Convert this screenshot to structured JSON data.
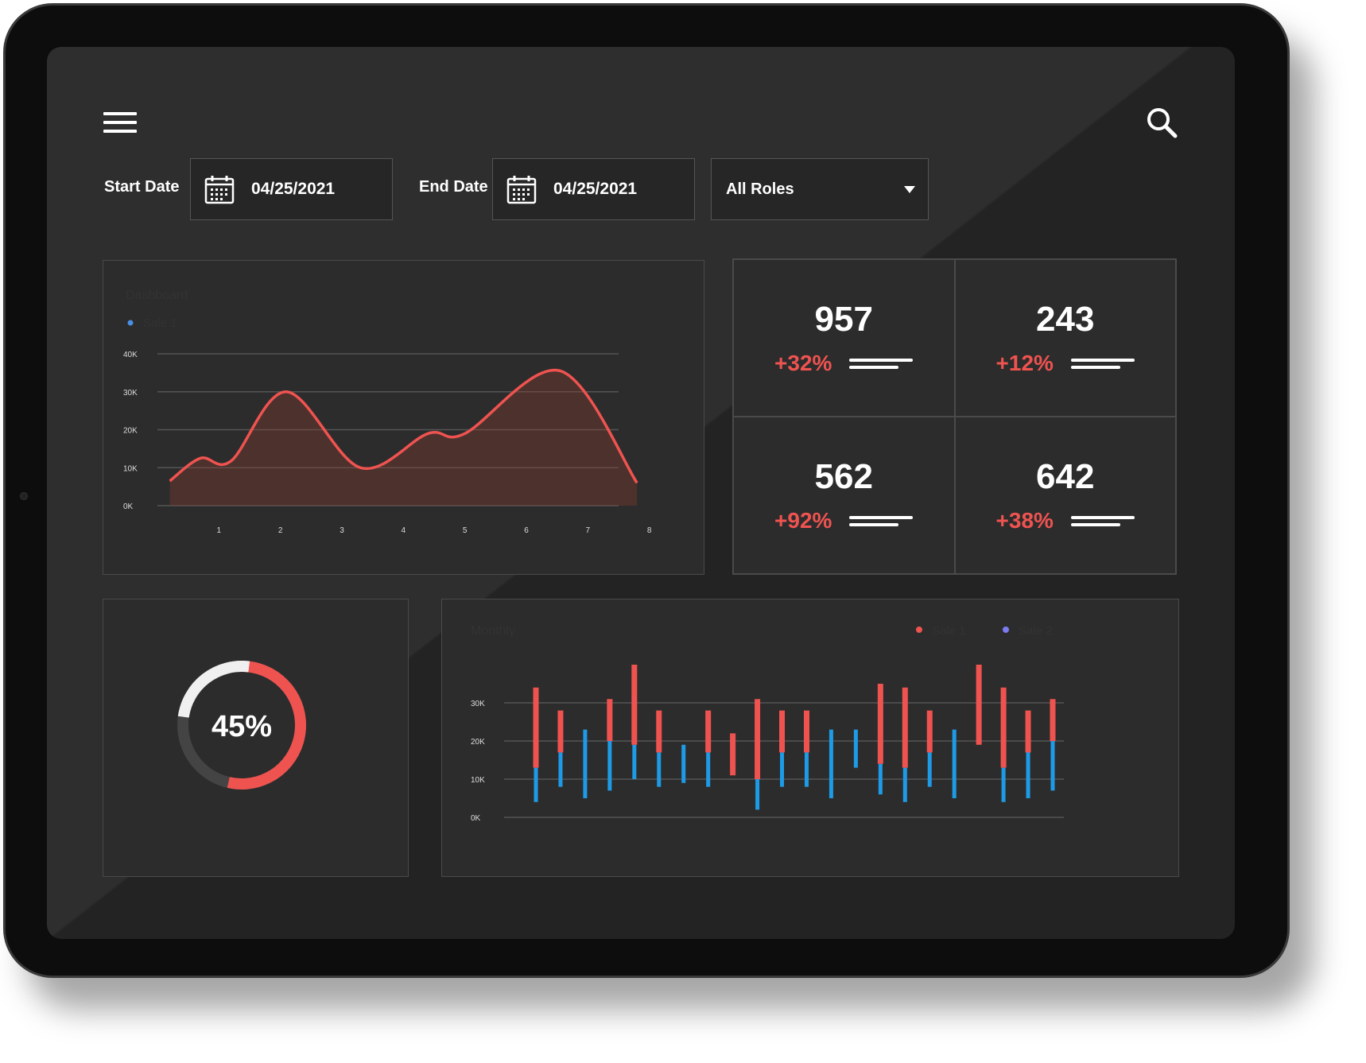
{
  "filters": {
    "start_label": "Start Date",
    "start_value": "04/25/2021",
    "end_label": "End Date",
    "end_value": "04/25/2021",
    "role_value": "All Roles"
  },
  "colors": {
    "accent_red": "#ef5350",
    "accent_blue": "#1e9be6",
    "legend_blue": "#4a8fe6",
    "legend_purple": "#7b7bf0"
  },
  "icons": {
    "menu": "hamburger-icon",
    "search": "search-icon",
    "calendar": "calendar-icon",
    "dropdown": "caret-down-icon"
  },
  "stats": [
    {
      "value": "957",
      "change": "+32%"
    },
    {
      "value": "243",
      "change": "+12%"
    },
    {
      "value": "562",
      "change": "+92%"
    },
    {
      "value": "642",
      "change": "+38%"
    }
  ],
  "gauge": {
    "label": "45%",
    "value": 0.45
  },
  "chart_data": [
    {
      "type": "area",
      "title": "Dashboard",
      "series": [
        {
          "name": "Sale 1",
          "values": [
            6500,
            12500,
            11800,
            30000,
            10000,
            19000,
            19000,
            35500,
            6000
          ]
        }
      ],
      "x": [
        0.2,
        0.7,
        1.2,
        2.1,
        3.3,
        4.4,
        5.0,
        6.55,
        7.8
      ],
      "x_ticks": [
        "1",
        "2",
        "3",
        "4",
        "5",
        "6",
        "7",
        "8"
      ],
      "y_ticks": [
        "40K",
        "30K",
        "20K",
        "10K",
        "0K"
      ],
      "ylim": [
        0,
        40000
      ],
      "grid": true,
      "legend": "top-left"
    },
    {
      "type": "bar",
      "title": "Monthly",
      "legend": "top-right",
      "y_ticks": [
        "30K",
        "20K",
        "10K",
        "0K"
      ],
      "ylim": [
        0,
        30000
      ],
      "grid": true,
      "series": [
        {
          "name": "Sale 1",
          "ranges": [
            [
              13000,
              34000
            ],
            [
              17000,
              28000
            ],
            null,
            [
              20000,
              31000
            ],
            [
              19000,
              40000
            ],
            [
              17000,
              28000
            ],
            null,
            [
              17000,
              28000
            ],
            [
              11000,
              22000
            ],
            [
              10000,
              31000
            ],
            [
              17000,
              28000
            ],
            [
              17000,
              28000
            ],
            null,
            null,
            [
              14000,
              35000
            ],
            [
              13000,
              34000
            ],
            [
              17000,
              28000
            ],
            null,
            [
              19000,
              40000
            ],
            [
              13000,
              34000
            ],
            [
              17000,
              28000
            ],
            [
              20000,
              31000
            ]
          ]
        },
        {
          "name": "Sale 2",
          "ranges": [
            [
              4000,
              13000
            ],
            [
              8000,
              17000
            ],
            [
              5000,
              23000
            ],
            [
              7000,
              20000
            ],
            [
              10000,
              19000
            ],
            [
              8000,
              17000
            ],
            [
              9000,
              19000
            ],
            [
              8000,
              17000
            ],
            null,
            [
              2000,
              10000
            ],
            [
              8000,
              17000
            ],
            [
              8000,
              17000
            ],
            [
              5000,
              23000
            ],
            [
              13000,
              23000
            ],
            [
              6000,
              14000
            ],
            [
              4000,
              13000
            ],
            [
              8000,
              17000
            ],
            [
              5000,
              23000
            ],
            null,
            [
              4000,
              13000
            ],
            [
              5000,
              23000
            ],
            [
              7000,
              20000
            ]
          ]
        }
      ]
    }
  ]
}
